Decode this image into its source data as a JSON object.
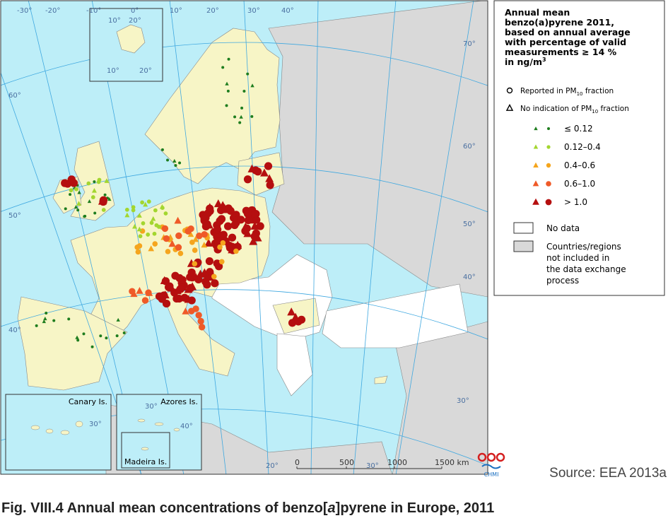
{
  "legend": {
    "title_lines": [
      "Annual mean",
      "benzo(a)pyrene 2011,",
      "based on annual average",
      "with percentage of valid",
      "measurements ≥ 14 %"
    ],
    "unit": {
      "text": "in ng/m",
      "sup": "3"
    },
    "symbols": [
      {
        "shape": "circle",
        "text": "Reported in PM",
        "sub": "10",
        "tail": " fraction"
      },
      {
        "shape": "triangle",
        "text": "No indication of PM",
        "sub": "10",
        "tail": " fraction"
      }
    ],
    "classes": [
      {
        "label": "≤ 0.12",
        "color": "#1e7d1e"
      },
      {
        "label": "0.12–0.4",
        "color": "#a3d62f"
      },
      {
        "label": "0.4–0.6",
        "color": "#f5a51d"
      },
      {
        "label": "0.6–1.0",
        "color": "#ef5a28"
      },
      {
        "label": "> 1.0",
        "color": "#b50f0f"
      }
    ],
    "areas": [
      {
        "color": "#ffffff",
        "lines": [
          "No data"
        ]
      },
      {
        "color": "#d9d9d9",
        "lines": [
          "Countries/regions",
          "not included in",
          "the data exchange",
          "process"
        ]
      }
    ]
  },
  "graticule_labels": [
    "-30°",
    "-20°",
    "-10°",
    "0°",
    "10°",
    "20°",
    "30°",
    "40°",
    "60°",
    "50°",
    "40°",
    "70°",
    "60°",
    "50°",
    "40°",
    "30°",
    "20°",
    "30°"
  ],
  "insets": {
    "svalbard_labels": [
      "10°",
      "20°",
      "10°",
      "20°"
    ],
    "canary": "Canary Is.",
    "canary_lat": "30°",
    "azores": "Azores Is.",
    "azores_lon": "30°",
    "azores_lat": "40°",
    "madeira": "Madeira Is."
  },
  "scale_bar": [
    "0",
    "500",
    "1000",
    "1500 km"
  ],
  "logo": "CHMI",
  "source": "Source: EEA 2013a",
  "caption": {
    "prefix": "Fig. VIII.4  Annual mean concentrations of benzo[",
    "italic": "a",
    "suffix": "]pyrene in Europe, 2011"
  }
}
